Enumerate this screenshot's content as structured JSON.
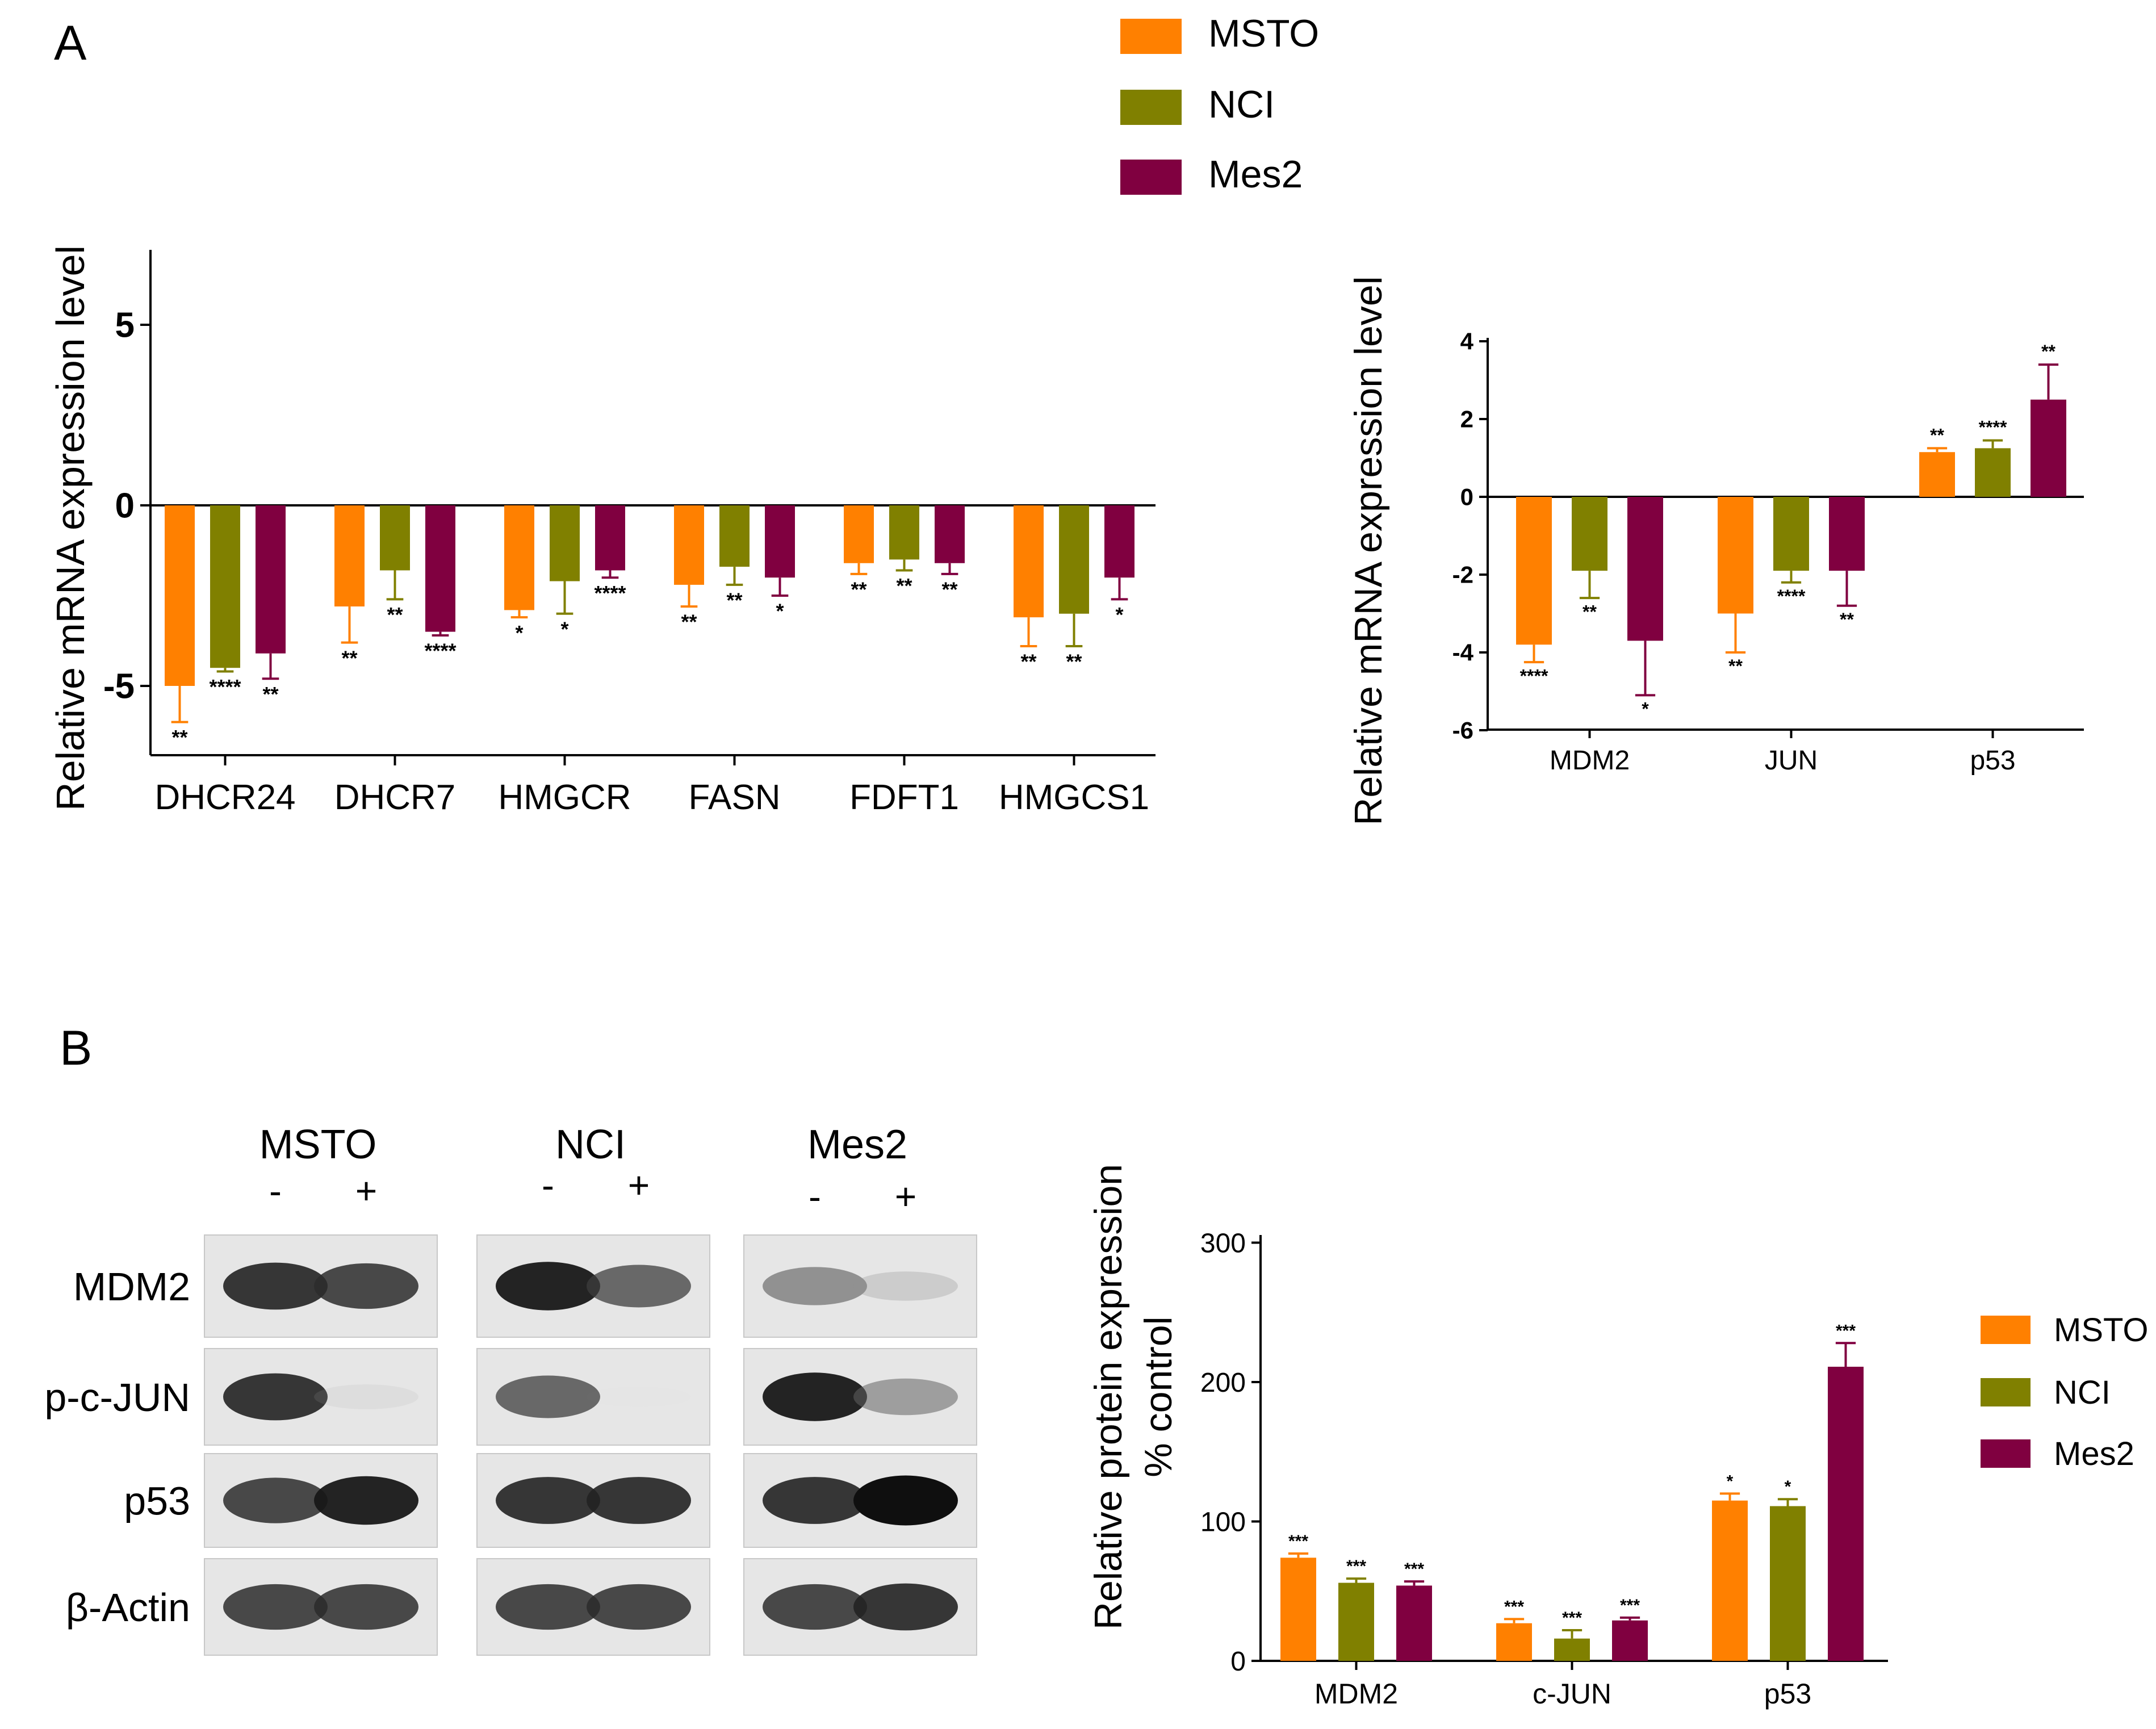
{
  "panels": {
    "a": "A",
    "b": "B"
  },
  "colors": {
    "MSTO": "#ff8000",
    "NCI": "#808000",
    "Mes2": "#800040"
  },
  "chart_data": [
    {
      "type": "bar",
      "panel": "A",
      "ylabel": "Relative  mRNA expression  level",
      "xlabel": "",
      "ylim": [
        -7,
        7
      ],
      "yticks": [
        -5,
        0,
        5
      ],
      "categories": [
        "DHCR24",
        "DHCR7",
        "HMGCR",
        "FASN",
        "FDFT1",
        "HMGCS1"
      ],
      "series": [
        {
          "name": "MSTO",
          "values": [
            -5.0,
            -2.8,
            -2.9,
            -2.2,
            -1.6,
            -3.1
          ],
          "errors": [
            1.0,
            1.0,
            0.2,
            0.6,
            0.3,
            0.8
          ],
          "sig": [
            "**",
            "**",
            "*",
            "**",
            "**",
            "**"
          ]
        },
        {
          "name": "NCI",
          "values": [
            -4.5,
            -1.8,
            -2.1,
            -1.7,
            -1.5,
            -3.0
          ],
          "errors": [
            0.1,
            0.8,
            0.9,
            0.5,
            0.3,
            0.9
          ],
          "sig": [
            "****",
            "**",
            "*",
            "**",
            "**",
            "**"
          ]
        },
        {
          "name": "Mes2",
          "values": [
            -4.1,
            -3.5,
            -1.8,
            -2.0,
            -1.6,
            -2.0
          ],
          "errors": [
            0.7,
            0.1,
            0.2,
            0.5,
            0.3,
            0.6
          ],
          "sig": [
            "**",
            "****",
            "****",
            "*",
            "**",
            "*"
          ]
        }
      ],
      "legend": {
        "position": "top",
        "entries": [
          "MSTO",
          "NCI",
          "Mes2"
        ]
      }
    },
    {
      "type": "bar",
      "panel": "A",
      "ylabel": "Relative  mRNA expression  level",
      "xlabel": "",
      "ylim": [
        -6,
        4
      ],
      "yticks": [
        -6,
        -4,
        -2,
        0,
        2,
        4
      ],
      "categories": [
        "MDM2",
        "JUN",
        "p53"
      ],
      "series": [
        {
          "name": "MSTO",
          "values": [
            -3.8,
            -3.0,
            1.15
          ],
          "errors": [
            0.45,
            1.0,
            0.1
          ],
          "sig": [
            "****",
            "**",
            "**"
          ]
        },
        {
          "name": "NCI",
          "values": [
            -1.9,
            -1.9,
            1.25
          ],
          "errors": [
            0.7,
            0.3,
            0.2
          ],
          "sig": [
            "**",
            "****",
            "****"
          ]
        },
        {
          "name": "Mes2",
          "values": [
            -3.7,
            -1.9,
            2.5
          ],
          "errors": [
            1.4,
            0.9,
            0.9
          ],
          "sig": [
            "*",
            "**",
            "**"
          ]
        }
      ]
    },
    {
      "type": "bar",
      "panel": "B",
      "ylabel": "Relative  protein expression",
      "ylabel2": "% control",
      "xlabel": "",
      "ylim": [
        0,
        300
      ],
      "yticks": [
        0,
        100,
        200,
        300
      ],
      "categories": [
        "MDM2",
        "c-JUN",
        "p53"
      ],
      "series": [
        {
          "name": "MSTO",
          "values": [
            74,
            27,
            115
          ],
          "errors": [
            3,
            3,
            5
          ],
          "sig": [
            "***",
            "***",
            "*"
          ]
        },
        {
          "name": "NCI",
          "values": [
            56,
            16,
            111
          ],
          "errors": [
            3,
            6,
            5
          ],
          "sig": [
            "***",
            "***",
            "*"
          ]
        },
        {
          "name": "Mes2",
          "values": [
            54,
            29,
            211
          ],
          "errors": [
            3,
            2,
            17
          ],
          "sig": [
            "***",
            "***",
            "***"
          ]
        }
      ],
      "legend": {
        "position": "right",
        "entries": [
          "MSTO",
          "NCI",
          "Mes2"
        ]
      }
    }
  ],
  "western_blot": {
    "groups": [
      {
        "name": "MSTO",
        "lanes": [
          "-",
          "+"
        ]
      },
      {
        "name": "NCI",
        "lanes": [
          "-",
          "+"
        ]
      },
      {
        "name": "Mes2",
        "lanes": [
          "-",
          "+"
        ]
      }
    ],
    "rows": [
      "MDM2",
      "p-c-JUN",
      "p53",
      "β-Actin"
    ],
    "band_intensity": [
      [
        [
          0.9,
          0.85
        ],
        [
          0.95,
          0.75
        ],
        [
          0.6,
          0.3
        ]
      ],
      [
        [
          0.9,
          0.15
        ],
        [
          0.75,
          0.0
        ],
        [
          0.95,
          0.55
        ]
      ],
      [
        [
          0.85,
          0.95
        ],
        [
          0.9,
          0.9
        ],
        [
          0.9,
          1.0
        ]
      ],
      [
        [
          0.85,
          0.85
        ],
        [
          0.85,
          0.85
        ],
        [
          0.85,
          0.9
        ]
      ]
    ]
  }
}
